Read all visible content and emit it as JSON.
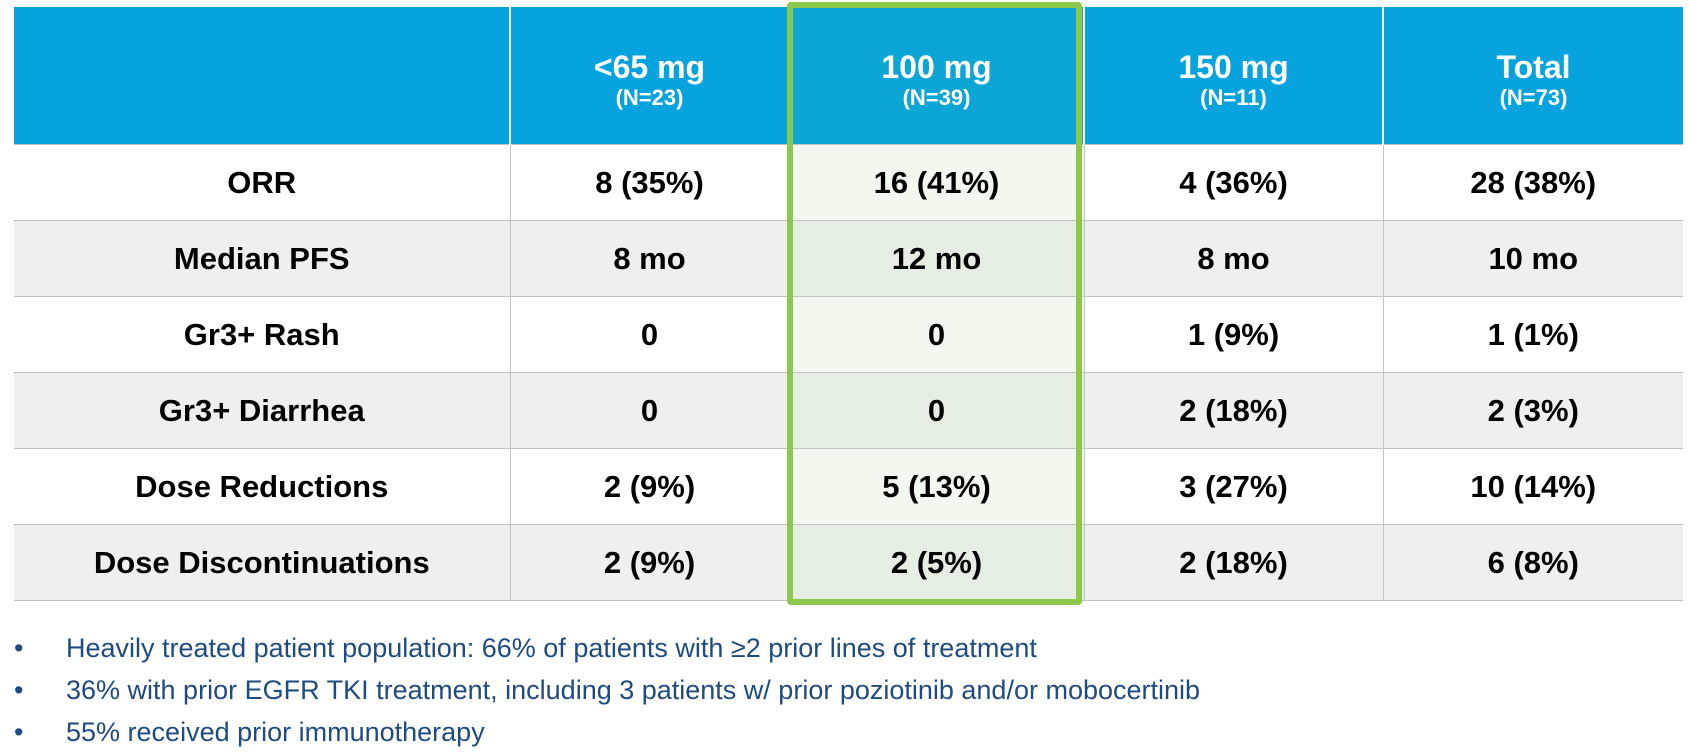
{
  "table": {
    "columns": [
      {
        "name": "",
        "n": ""
      },
      {
        "name": "<65 mg",
        "n": "(N=23)"
      },
      {
        "name": "100 mg",
        "n": "(N=39)"
      },
      {
        "name": "150 mg",
        "n": "(N=11)"
      },
      {
        "name": "Total",
        "n": "(N=73)"
      }
    ],
    "rows": [
      [
        "ORR",
        "8 (35%)",
        "16 (41%)",
        "4 (36%)",
        "28 (38%)"
      ],
      [
        "Median PFS",
        "8 mo",
        "12 mo",
        "8 mo",
        "10 mo"
      ],
      [
        "Gr3+ Rash",
        "0",
        "0",
        "1 (9%)",
        "1 (1%)"
      ],
      [
        "Gr3+ Diarrhea",
        "0",
        "0",
        "2 (18%)",
        "2 (3%)"
      ],
      [
        "Dose Reductions",
        "2 (9%)",
        "5 (13%)",
        "3 (27%)",
        "10 (14%)"
      ],
      [
        "Dose Discontinuations",
        "2 (9%)",
        "2 (5%)",
        "2 (18%)",
        "6 (8%)"
      ]
    ]
  },
  "notes": {
    "bullet": "•",
    "items": [
      "Heavily treated patient population: 66% of patients with ≥2 prior lines of treatment",
      "36% with prior EGFR TKI treatment, including 3 patients w/ prior poziotinib and/or mobocertinib",
      "55% received prior immunotherapy"
    ]
  },
  "colors": {
    "header_bg": "#06a3de",
    "highlight_border": "#8cc84b",
    "bullet_text": "#1e4b80",
    "zebra_row": "#efefef"
  }
}
